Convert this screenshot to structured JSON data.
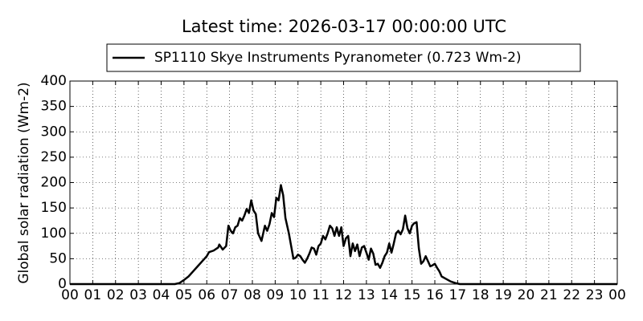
{
  "chart_data": {
    "type": "line",
    "title": "Latest time: 2026-03-17 00:00:00 UTC",
    "y_label": "Global solar radiation (Wm-2)",
    "x": [
      0,
      4.6,
      4.8,
      5.0,
      5.2,
      5.4,
      5.6,
      5.8,
      6.0,
      6.1,
      6.3,
      6.5,
      6.55,
      6.7,
      6.85,
      6.95,
      7.05,
      7.15,
      7.25,
      7.35,
      7.45,
      7.55,
      7.65,
      7.75,
      7.85,
      7.95,
      8.05,
      8.15,
      8.25,
      8.4,
      8.55,
      8.65,
      8.75,
      8.85,
      8.95,
      9.05,
      9.15,
      9.25,
      9.35,
      9.45,
      9.6,
      9.7,
      9.8,
      9.9,
      10.0,
      10.1,
      10.2,
      10.3,
      10.4,
      10.5,
      10.6,
      10.7,
      10.8,
      10.9,
      11.0,
      11.1,
      11.2,
      11.3,
      11.4,
      11.5,
      11.6,
      11.7,
      11.8,
      11.9,
      12.0,
      12.1,
      12.2,
      12.3,
      12.4,
      12.5,
      12.6,
      12.7,
      12.8,
      12.9,
      13.0,
      13.1,
      13.2,
      13.3,
      13.4,
      13.5,
      13.6,
      13.7,
      13.8,
      13.9,
      14.0,
      14.1,
      14.2,
      14.3,
      14.4,
      14.5,
      14.6,
      14.7,
      14.8,
      14.9,
      15.0,
      15.1,
      15.2,
      15.3,
      15.4,
      15.5,
      15.6,
      15.7,
      15.8,
      15.9,
      16.0,
      16.1,
      16.2,
      16.3,
      16.5,
      16.7,
      16.9,
      17.1,
      24
    ],
    "series": [
      {
        "name": "SP1110 Skye Instruments Pyranometer (0.723 Wm-2)",
        "color": "#000000",
        "values": [
          0,
          0,
          2,
          8,
          15,
          25,
          35,
          45,
          55,
          63,
          66,
          72,
          78,
          68,
          75,
          115,
          105,
          100,
          112,
          115,
          130,
          125,
          135,
          148,
          140,
          165,
          145,
          138,
          100,
          85,
          115,
          105,
          118,
          140,
          132,
          170,
          165,
          195,
          175,
          130,
          100,
          75,
          50,
          52,
          58,
          55,
          48,
          42,
          50,
          60,
          72,
          70,
          58,
          75,
          80,
          95,
          88,
          100,
          115,
          110,
          95,
          112,
          95,
          112,
          75,
          90,
          95,
          55,
          80,
          65,
          78,
          55,
          72,
          75,
          62,
          48,
          70,
          60,
          38,
          40,
          32,
          42,
          55,
          62,
          80,
          62,
          80,
          100,
          105,
          98,
          108,
          135,
          110,
          100,
          115,
          120,
          122,
          70,
          40,
          45,
          55,
          45,
          35,
          37,
          40,
          32,
          25,
          15,
          10,
          5,
          2,
          0,
          0
        ]
      }
    ],
    "xlim": [
      0,
      24
    ],
    "ylim": [
      0,
      400
    ],
    "xticks": [
      {
        "value": 0,
        "label": "00"
      },
      {
        "value": 1,
        "label": "01"
      },
      {
        "value": 2,
        "label": "02"
      },
      {
        "value": 3,
        "label": "03"
      },
      {
        "value": 4,
        "label": "04"
      },
      {
        "value": 5,
        "label": "05"
      },
      {
        "value": 6,
        "label": "06"
      },
      {
        "value": 7,
        "label": "07"
      },
      {
        "value": 8,
        "label": "08"
      },
      {
        "value": 9,
        "label": "09"
      },
      {
        "value": 10,
        "label": "10"
      },
      {
        "value": 11,
        "label": "11"
      },
      {
        "value": 12,
        "label": "12"
      },
      {
        "value": 13,
        "label": "13"
      },
      {
        "value": 14,
        "label": "14"
      },
      {
        "value": 15,
        "label": "15"
      },
      {
        "value": 16,
        "label": "16"
      },
      {
        "value": 17,
        "label": "17"
      },
      {
        "value": 18,
        "label": "18"
      },
      {
        "value": 19,
        "label": "19"
      },
      {
        "value": 20,
        "label": "20"
      },
      {
        "value": 21,
        "label": "21"
      },
      {
        "value": 22,
        "label": "22"
      },
      {
        "value": 23,
        "label": "23"
      },
      {
        "value": 24,
        "label": "00"
      }
    ],
    "yticks": [
      0,
      50,
      100,
      150,
      200,
      250,
      300,
      350,
      400
    ],
    "grid": true
  }
}
